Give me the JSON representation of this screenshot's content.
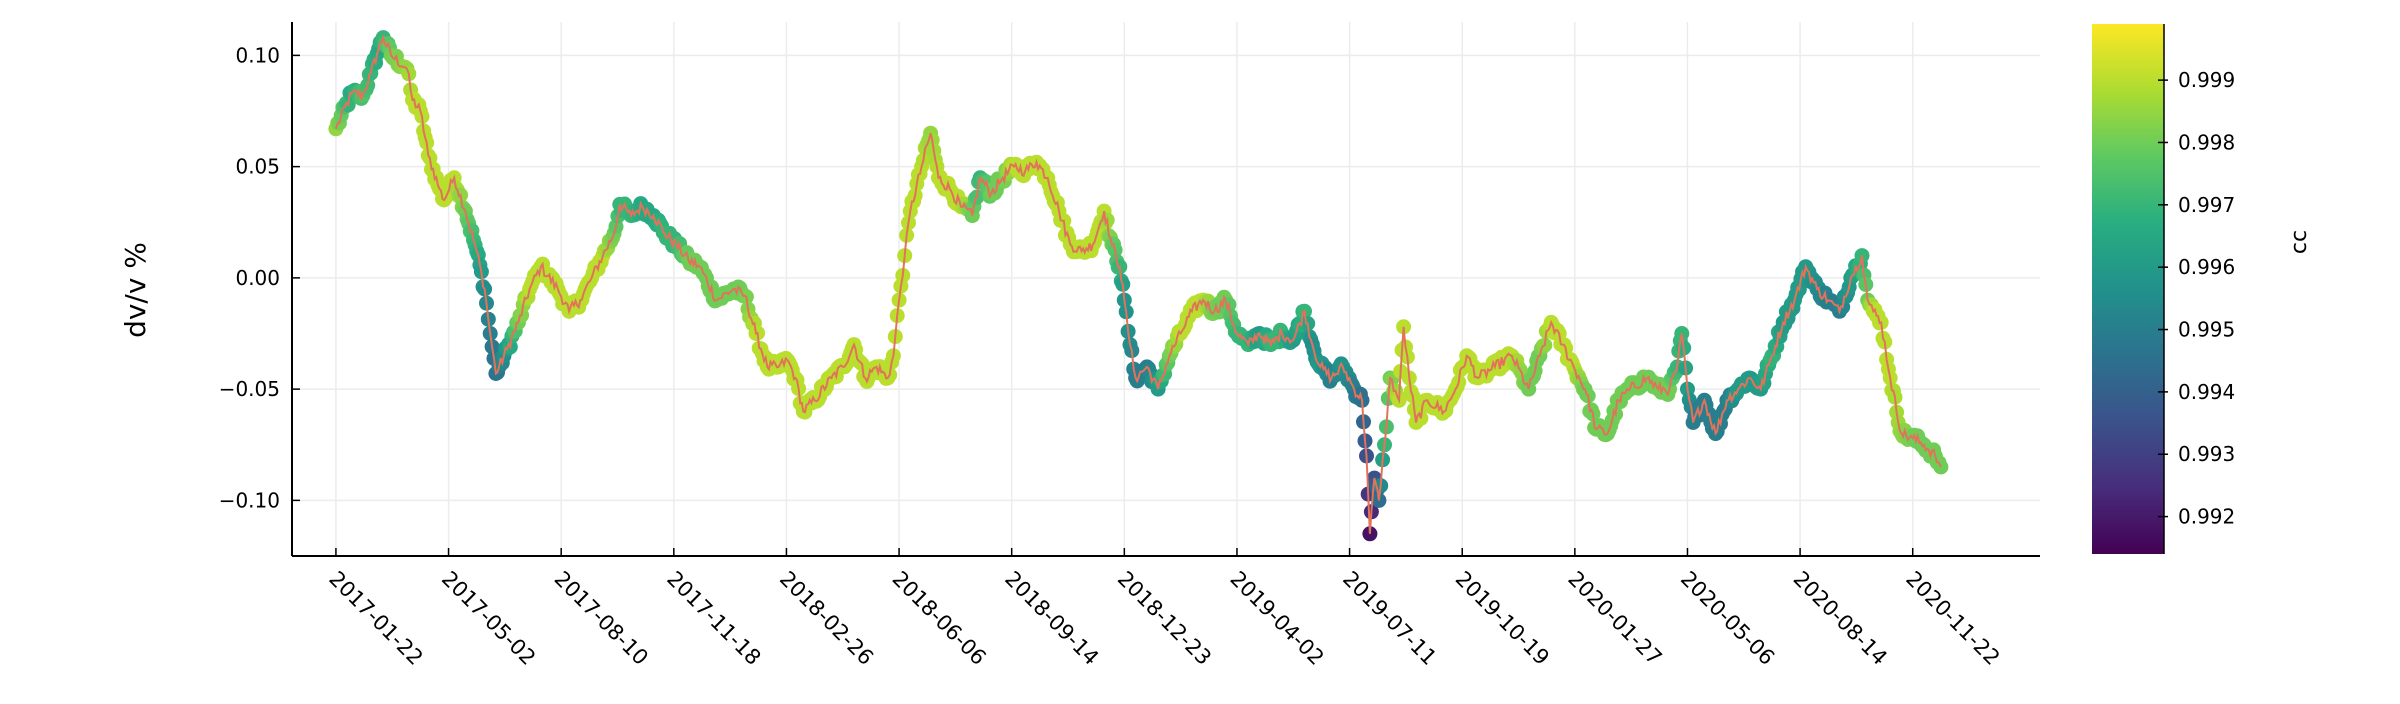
{
  "chart_data": {
    "type": "scatter",
    "title": "",
    "xlabel": "",
    "ylabel": "dv/v %",
    "x_tick_labels": [
      "2017-01-22",
      "2017-05-02",
      "2017-08-10",
      "2017-11-18",
      "2018-02-26",
      "2018-06-06",
      "2018-09-14",
      "2018-12-23",
      "2019-04-02",
      "2019-07-11",
      "2019-10-19",
      "2020-01-27",
      "2020-05-06",
      "2020-08-14",
      "2020-11-22"
    ],
    "y_ticks": [
      0.1,
      0.05,
      0.0,
      -0.05,
      -0.1
    ],
    "y_tick_labels": [
      "0.10",
      "0.05",
      "0.00",
      "−0.05",
      "−0.10"
    ],
    "xlim": [
      "2016-12-14",
      "2021-03-15"
    ],
    "ylim": [
      -0.125,
      0.115
    ],
    "grid": true,
    "line_color": "#e2735a",
    "colorbar": {
      "label": "cc",
      "colormap": "viridis",
      "range": [
        0.9914,
        0.9999
      ],
      "ticks": [
        0.992,
        0.993,
        0.994,
        0.995,
        0.996,
        0.997,
        0.998,
        0.999
      ],
      "tick_labels": [
        "0.992",
        "0.993",
        "0.994",
        "0.995",
        "0.996",
        "0.997",
        "0.998",
        "0.999"
      ]
    },
    "series": [
      {
        "keypoints": [
          [
            "2017-01-22",
            0.067,
            0.9985
          ],
          [
            "2017-02-05",
            0.083,
            0.9965
          ],
          [
            "2017-02-15",
            0.082,
            0.9975
          ],
          [
            "2017-02-22",
            0.092,
            0.997
          ],
          [
            "2017-03-01",
            0.103,
            0.9965
          ],
          [
            "2017-03-05",
            0.108,
            0.997
          ],
          [
            "2017-03-12",
            0.1,
            0.998
          ],
          [
            "2017-03-26",
            0.094,
            0.9985
          ],
          [
            "2017-03-31",
            0.08,
            0.999
          ],
          [
            "2017-04-07",
            0.075,
            0.999
          ],
          [
            "2017-04-14",
            0.055,
            0.999
          ],
          [
            "2017-04-24",
            0.04,
            0.999
          ],
          [
            "2017-04-28",
            0.035,
            0.999
          ],
          [
            "2017-05-07",
            0.045,
            0.999
          ],
          [
            "2017-05-17",
            0.03,
            0.998
          ],
          [
            "2017-05-27",
            0.012,
            0.9968
          ],
          [
            "2017-06-03",
            -0.005,
            0.9955
          ],
          [
            "2017-06-08",
            -0.025,
            0.995
          ],
          [
            "2017-06-13",
            -0.043,
            0.9945
          ],
          [
            "2017-06-23",
            -0.032,
            0.996
          ],
          [
            "2017-07-03",
            -0.02,
            0.998
          ],
          [
            "2017-07-13",
            -0.005,
            0.999
          ],
          [
            "2017-07-23",
            0.005,
            0.999
          ],
          [
            "2017-08-07",
            -0.005,
            0.999
          ],
          [
            "2017-08-17",
            -0.015,
            0.999
          ],
          [
            "2017-08-27",
            -0.01,
            0.999
          ],
          [
            "2017-09-06",
            0.0,
            0.999
          ],
          [
            "2017-09-16",
            0.01,
            0.999
          ],
          [
            "2017-09-26",
            0.02,
            0.998
          ],
          [
            "2017-10-01",
            0.033,
            0.997
          ],
          [
            "2017-10-11",
            0.028,
            0.997
          ],
          [
            "2017-10-21",
            0.032,
            0.9965
          ],
          [
            "2017-10-31",
            0.028,
            0.9965
          ],
          [
            "2017-11-10",
            0.02,
            0.997
          ],
          [
            "2017-11-20",
            0.015,
            0.997
          ],
          [
            "2017-12-01",
            0.008,
            0.998
          ],
          [
            "2017-12-11",
            0.005,
            0.998
          ],
          [
            "2017-12-26",
            -0.01,
            0.998
          ],
          [
            "2018-01-10",
            -0.005,
            0.998
          ],
          [
            "2018-01-20",
            -0.008,
            0.998
          ],
          [
            "2018-01-30",
            -0.025,
            0.999
          ],
          [
            "2018-02-09",
            -0.04,
            0.999
          ],
          [
            "2018-02-19",
            -0.04,
            0.999
          ],
          [
            "2018-02-27",
            -0.037,
            0.999
          ],
          [
            "2018-03-06",
            -0.045,
            0.999
          ],
          [
            "2018-03-13",
            -0.06,
            0.999
          ],
          [
            "2018-03-23",
            -0.055,
            0.999
          ],
          [
            "2018-04-07",
            -0.045,
            0.999
          ],
          [
            "2018-04-17",
            -0.04,
            0.999
          ],
          [
            "2018-04-27",
            -0.03,
            0.999
          ],
          [
            "2018-05-07",
            -0.045,
            0.999
          ],
          [
            "2018-05-17",
            -0.04,
            0.999
          ],
          [
            "2018-05-27",
            -0.045,
            0.999
          ],
          [
            "2018-06-01",
            -0.035,
            0.999
          ],
          [
            "2018-06-06",
            -0.01,
            0.999
          ],
          [
            "2018-06-11",
            0.01,
            0.999
          ],
          [
            "2018-06-16",
            0.03,
            0.999
          ],
          [
            "2018-06-26",
            0.05,
            0.999
          ],
          [
            "2018-07-04",
            0.065,
            0.9985
          ],
          [
            "2018-07-11",
            0.045,
            0.999
          ],
          [
            "2018-07-21",
            0.04,
            0.999
          ],
          [
            "2018-07-31",
            0.032,
            0.999
          ],
          [
            "2018-08-10",
            0.028,
            0.998
          ],
          [
            "2018-08-17",
            0.045,
            0.997
          ],
          [
            "2018-08-27",
            0.038,
            0.998
          ],
          [
            "2018-09-06",
            0.045,
            0.998
          ],
          [
            "2018-09-16",
            0.05,
            0.999
          ],
          [
            "2018-09-26",
            0.048,
            0.999
          ],
          [
            "2018-10-06",
            0.052,
            0.999
          ],
          [
            "2018-10-16",
            0.045,
            0.999
          ],
          [
            "2018-10-26",
            0.03,
            0.999
          ],
          [
            "2018-11-05",
            0.015,
            0.999
          ],
          [
            "2018-11-15",
            0.012,
            0.999
          ],
          [
            "2018-11-25",
            0.015,
            0.999
          ],
          [
            "2018-12-05",
            0.03,
            0.999
          ],
          [
            "2018-12-12",
            0.015,
            0.998
          ],
          [
            "2018-12-19",
            0.005,
            0.997
          ],
          [
            "2018-12-23",
            -0.01,
            0.9958
          ],
          [
            "2018-12-28",
            -0.03,
            0.9955
          ],
          [
            "2019-01-02",
            -0.045,
            0.995
          ],
          [
            "2019-01-12",
            -0.04,
            0.995
          ],
          [
            "2019-01-22",
            -0.05,
            0.996
          ],
          [
            "2019-02-01",
            -0.035,
            0.998
          ],
          [
            "2019-02-11",
            -0.025,
            0.999
          ],
          [
            "2019-02-21",
            -0.015,
            0.999
          ],
          [
            "2019-03-03",
            -0.01,
            0.999
          ],
          [
            "2019-03-13",
            -0.015,
            0.998
          ],
          [
            "2019-03-23",
            -0.01,
            0.998
          ],
          [
            "2019-04-02",
            -0.025,
            0.997
          ],
          [
            "2019-04-12",
            -0.03,
            0.997
          ],
          [
            "2019-04-22",
            -0.025,
            0.996
          ],
          [
            "2019-05-02",
            -0.03,
            0.997
          ],
          [
            "2019-05-12",
            -0.025,
            0.997
          ],
          [
            "2019-05-22",
            -0.028,
            0.996
          ],
          [
            "2019-06-01",
            -0.015,
            0.997
          ],
          [
            "2019-06-08",
            -0.03,
            0.9955
          ],
          [
            "2019-06-15",
            -0.04,
            0.996
          ],
          [
            "2019-06-25",
            -0.045,
            0.995
          ],
          [
            "2019-07-05",
            -0.04,
            0.9958
          ],
          [
            "2019-07-15",
            -0.05,
            0.995
          ],
          [
            "2019-07-22",
            -0.055,
            0.9945
          ],
          [
            "2019-07-26",
            -0.08,
            0.9935
          ],
          [
            "2019-07-29",
            -0.115,
            0.9918
          ],
          [
            "2019-08-02",
            -0.09,
            0.9935
          ],
          [
            "2019-08-06",
            -0.1,
            0.9945
          ],
          [
            "2019-08-11",
            -0.075,
            0.997
          ],
          [
            "2019-08-16",
            -0.045,
            0.998
          ],
          [
            "2019-08-24",
            -0.055,
            0.999
          ],
          [
            "2019-08-28",
            -0.022,
            0.999
          ],
          [
            "2019-09-02",
            -0.045,
            0.999
          ],
          [
            "2019-09-08",
            -0.065,
            0.999
          ],
          [
            "2019-09-18",
            -0.055,
            0.999
          ],
          [
            "2019-10-03",
            -0.06,
            0.999
          ],
          [
            "2019-10-13",
            -0.05,
            0.999
          ],
          [
            "2019-10-23",
            -0.035,
            0.999
          ],
          [
            "2019-11-02",
            -0.045,
            0.999
          ],
          [
            "2019-11-17",
            -0.04,
            0.999
          ],
          [
            "2019-12-02",
            -0.035,
            0.999
          ],
          [
            "2019-12-17",
            -0.05,
            0.998
          ],
          [
            "2019-12-27",
            -0.035,
            0.998
          ],
          [
            "2020-01-06",
            -0.02,
            0.999
          ],
          [
            "2020-01-16",
            -0.03,
            0.999
          ],
          [
            "2020-01-26",
            -0.04,
            0.999
          ],
          [
            "2020-02-05",
            -0.05,
            0.998
          ],
          [
            "2020-02-15",
            -0.068,
            0.998
          ],
          [
            "2020-02-25",
            -0.07,
            0.998
          ],
          [
            "2020-03-06",
            -0.055,
            0.998
          ],
          [
            "2020-03-16",
            -0.05,
            0.998
          ],
          [
            "2020-03-31",
            -0.045,
            0.998
          ],
          [
            "2020-04-10",
            -0.05,
            0.998
          ],
          [
            "2020-04-20",
            -0.05,
            0.998
          ],
          [
            "2020-04-27",
            -0.04,
            0.997
          ],
          [
            "2020-05-01",
            -0.025,
            0.997
          ],
          [
            "2020-05-06",
            -0.05,
            0.996
          ],
          [
            "2020-05-11",
            -0.065,
            0.995
          ],
          [
            "2020-05-21",
            -0.055,
            0.995
          ],
          [
            "2020-05-31",
            -0.07,
            0.995
          ],
          [
            "2020-06-10",
            -0.055,
            0.995
          ],
          [
            "2020-06-20",
            -0.05,
            0.996
          ],
          [
            "2020-06-30",
            -0.045,
            0.996
          ],
          [
            "2020-07-10",
            -0.05,
            0.996
          ],
          [
            "2020-07-20",
            -0.035,
            0.997
          ],
          [
            "2020-07-30",
            -0.02,
            0.996
          ],
          [
            "2020-08-09",
            -0.01,
            0.996
          ],
          [
            "2020-08-19",
            0.005,
            0.996
          ],
          [
            "2020-08-29",
            -0.005,
            0.9955
          ],
          [
            "2020-09-08",
            -0.01,
            0.995
          ],
          [
            "2020-09-18",
            -0.015,
            0.995
          ],
          [
            "2020-09-28",
            0.0,
            0.996
          ],
          [
            "2020-10-08",
            0.01,
            0.997
          ],
          [
            "2020-10-13",
            -0.01,
            0.998
          ],
          [
            "2020-10-18",
            -0.015,
            0.999
          ],
          [
            "2020-10-25",
            -0.02,
            0.999
          ],
          [
            "2020-11-02",
            -0.045,
            0.999
          ],
          [
            "2020-11-12",
            -0.07,
            0.9985
          ],
          [
            "2020-11-22",
            -0.072,
            0.998
          ],
          [
            "2020-12-02",
            -0.075,
            0.998
          ],
          [
            "2020-12-12",
            -0.08,
            0.998
          ],
          [
            "2020-12-17",
            -0.085,
            0.998
          ]
        ]
      }
    ]
  }
}
